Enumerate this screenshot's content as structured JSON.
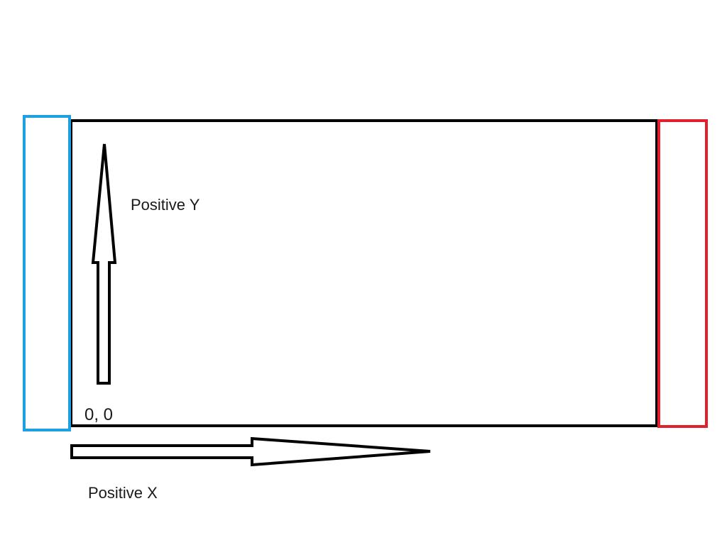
{
  "labels": {
    "positive_y": "Positive Y",
    "positive_x": "Positive X",
    "origin": "0, 0"
  },
  "colors": {
    "outline": "#000000",
    "left_box": "#1ea0e0",
    "right_box": "#e0202a",
    "background": "#ffffff"
  }
}
